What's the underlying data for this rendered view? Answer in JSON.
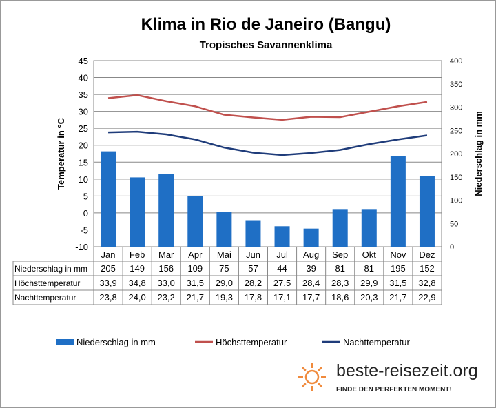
{
  "chart_data": {
    "type": "bar+line",
    "title": "Klima in Rio de Janeiro (Bangu)",
    "subtitle": "Tropisches  Savannenklima",
    "ylabel_left": "Temperatur in °C",
    "ylabel_right": "Niederschlag in mm",
    "ylim_left": [
      -10,
      45
    ],
    "yticks_left": [
      -10,
      -5,
      0,
      5,
      10,
      15,
      20,
      25,
      30,
      35,
      40,
      45
    ],
    "ylim_right": [
      0,
      400
    ],
    "yticks_right": [
      0,
      50,
      100,
      150,
      200,
      250,
      300,
      350,
      400
    ],
    "categories": [
      "Jan",
      "Feb",
      "Mar",
      "Apr",
      "Mai",
      "Jun",
      "Jul",
      "Aug",
      "Sep",
      "Okt",
      "Nov",
      "Dez"
    ],
    "series": [
      {
        "name": "Niederschlag in mm",
        "type": "bar",
        "axis": "right",
        "color": "#1F6FC5",
        "values": [
          205,
          149,
          156,
          109,
          75,
          57,
          44,
          39,
          81,
          81,
          195,
          152
        ],
        "display": [
          "205",
          "149",
          "156",
          "109",
          "75",
          "57",
          "44",
          "39",
          "81",
          "81",
          "195",
          "152"
        ]
      },
      {
        "name": "Höchsttemperatur",
        "type": "line",
        "axis": "left",
        "color": "#C0504D",
        "values": [
          33.9,
          34.8,
          33.0,
          31.5,
          29.0,
          28.2,
          27.5,
          28.4,
          28.3,
          29.9,
          31.5,
          32.8
        ],
        "display": [
          "33,9",
          "34,8",
          "33,0",
          "31,5",
          "29,0",
          "28,2",
          "27,5",
          "28,4",
          "28,3",
          "29,9",
          "31,5",
          "32,8"
        ]
      },
      {
        "name": "Nachttemperatur",
        "type": "line",
        "axis": "left",
        "color": "#1F3C7A",
        "values": [
          23.8,
          24.0,
          23.2,
          21.7,
          19.3,
          17.8,
          17.1,
          17.7,
          18.6,
          20.3,
          21.7,
          22.9
        ],
        "display": [
          "23,8",
          "24,0",
          "23,2",
          "21,7",
          "19,3",
          "17,8",
          "17,1",
          "17,7",
          "18,6",
          "20,3",
          "21,7",
          "22,9"
        ]
      }
    ],
    "grid": "horizontal",
    "legend": "bottom"
  },
  "logo": {
    "name": "beste-reisezeit.org",
    "tagline": "FINDE DEN PERFEKTEN MOMENT!",
    "icon": "sun-icon",
    "color": "#F08A3C"
  }
}
